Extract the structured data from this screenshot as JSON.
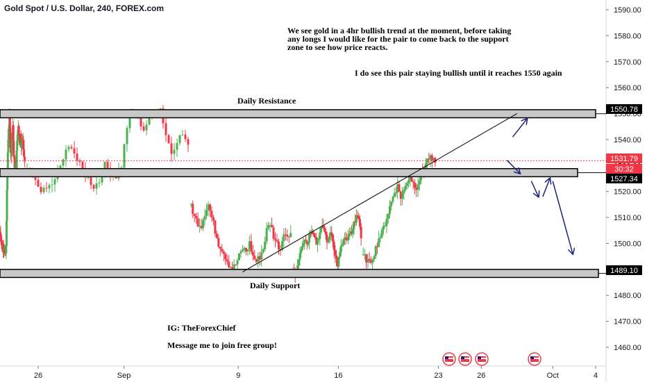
{
  "header": {
    "title": "Gold Spot / U.S. Dollar, 240, FOREX.com"
  },
  "annotations": {
    "main_text": "We see gold in a 4hr bullish trend at the moment, before taking\nany longs I would like for the pair to come back to the support\nzone to see how price reacts.",
    "bullish_text": "I do see this pair staying bullish until it reaches 1550 again",
    "resistance_label": "Daily Resistance",
    "support_label": "Daily Support",
    "ig_text": "IG: TheForexChief",
    "message_text": "Message me to join free group!"
  },
  "colors": {
    "up": "#26a69a",
    "down": "#ef5350",
    "candle_up": "#4caf50",
    "candle_down": "#f23645",
    "arrow": "#1a237e",
    "zone_fill": "#c8c8c8",
    "price_line": "#f23645"
  },
  "price_axis": {
    "ticks": [
      "1590.00",
      "1580.00",
      "1570.00",
      "1560.00",
      "1550.00",
      "1540.00",
      "1530.00",
      "1520.00",
      "1510.00",
      "1500.00",
      "1490.00",
      "1480.00",
      "1470.00",
      "1460.00"
    ],
    "markers": [
      {
        "label": "1550.78",
        "type": "zone"
      },
      {
        "label": "1531.79",
        "type": "current"
      },
      {
        "label": "30:32",
        "type": "countdown"
      },
      {
        "label": "1527.34",
        "type": "zone"
      },
      {
        "label": "1489.10",
        "type": "zone"
      }
    ]
  },
  "time_axis": {
    "ticks": [
      "26",
      "Sep",
      "9",
      "16",
      "23",
      "26",
      "Oct",
      "4"
    ]
  },
  "chart_data": {
    "type": "candlestick",
    "symbol": "Gold Spot / U.S. Dollar",
    "timeframe": "240",
    "ylim": [
      1452,
      1595
    ],
    "x_range_days": [
      22,
      65
    ],
    "x_days": [
      26,
      32,
      40,
      47,
      54,
      57,
      62,
      65
    ],
    "zones": [
      {
        "name": "Daily Resistance",
        "low": 1550,
        "high": 1551.5
      },
      {
        "name": "middle",
        "low": 1527.3,
        "high": 1528.8
      },
      {
        "name": "Daily Support",
        "low": 1488.5,
        "high": 1490.0
      }
    ],
    "current_price": 1531.79,
    "series_path": [
      [
        1504,
        1502,
        1500,
        1498,
        1497,
        1498,
        1496,
        1499,
        1520,
        1535,
        1545,
        1548,
        1538,
        1532,
        1540,
        1545,
        1535,
        1528,
        1532,
        1530,
        1540,
        1545,
        1543,
        1538,
        1542,
        1536,
        1541,
        1540,
        1535,
        1532
      ],
      [
        1528,
        1525,
        1522,
        1520,
        1522,
        1524,
        1530,
        1535,
        1538,
        1532,
        1528,
        1525,
        1522,
        1524,
        1530,
        1528,
        1526,
        1530,
        1545,
        1550,
        1548,
        1544,
        1548,
        1550,
        1552,
        1542,
        1535,
        1540,
        1542,
        1538
      ],
      [
        1515,
        1510,
        1508,
        1507,
        1512,
        1515,
        1510,
        1505,
        1500,
        1498,
        1495,
        1492,
        1490,
        1492,
        1495,
        1498,
        1497,
        1500,
        1495,
        1493,
        1495,
        1498,
        1505,
        1508,
        1503,
        1500,
        1498,
        1505,
        1502,
        1504
      ],
      [
        1490,
        1488,
        1492,
        1497,
        1500,
        1502,
        1500,
        1503,
        1506,
        1504,
        1500,
        1503,
        1505,
        1506,
        1503,
        1500,
        1505,
        1502,
        1495,
        1492,
        1496,
        1500,
        1502,
        1500,
        1504,
        1503,
        1507,
        1512,
        1508,
        1502
      ],
      [
        1495,
        1494,
        1492,
        1495,
        1498,
        1502,
        1504,
        1508,
        1512,
        1516,
        1520,
        1522,
        1518,
        1520,
        1524,
        1526,
        1523,
        1522,
        1525,
        1528,
        1531,
        1533,
        1532,
        1531
      ]
    ],
    "trendline": {
      "from": [
        40.3,
        1489
      ],
      "to": [
        59.5,
        1550
      ]
    },
    "arrows": [
      {
        "from": [
          59.2,
          1541
        ],
        "to": [
          60.2,
          1548
        ],
        "dir": "up"
      },
      {
        "from": [
          58.8,
          1532
        ],
        "to": [
          59.7,
          1527
        ],
        "dir": "down"
      },
      {
        "from": [
          60.5,
          1524
        ],
        "to": [
          61.0,
          1518
        ],
        "dir": "down"
      },
      {
        "from": [
          61.3,
          1518
        ],
        "to": [
          61.8,
          1525
        ],
        "dir": "up"
      },
      {
        "from": [
          62.0,
          1524
        ],
        "to": [
          63.4,
          1496
        ],
        "dir": "down"
      }
    ]
  }
}
